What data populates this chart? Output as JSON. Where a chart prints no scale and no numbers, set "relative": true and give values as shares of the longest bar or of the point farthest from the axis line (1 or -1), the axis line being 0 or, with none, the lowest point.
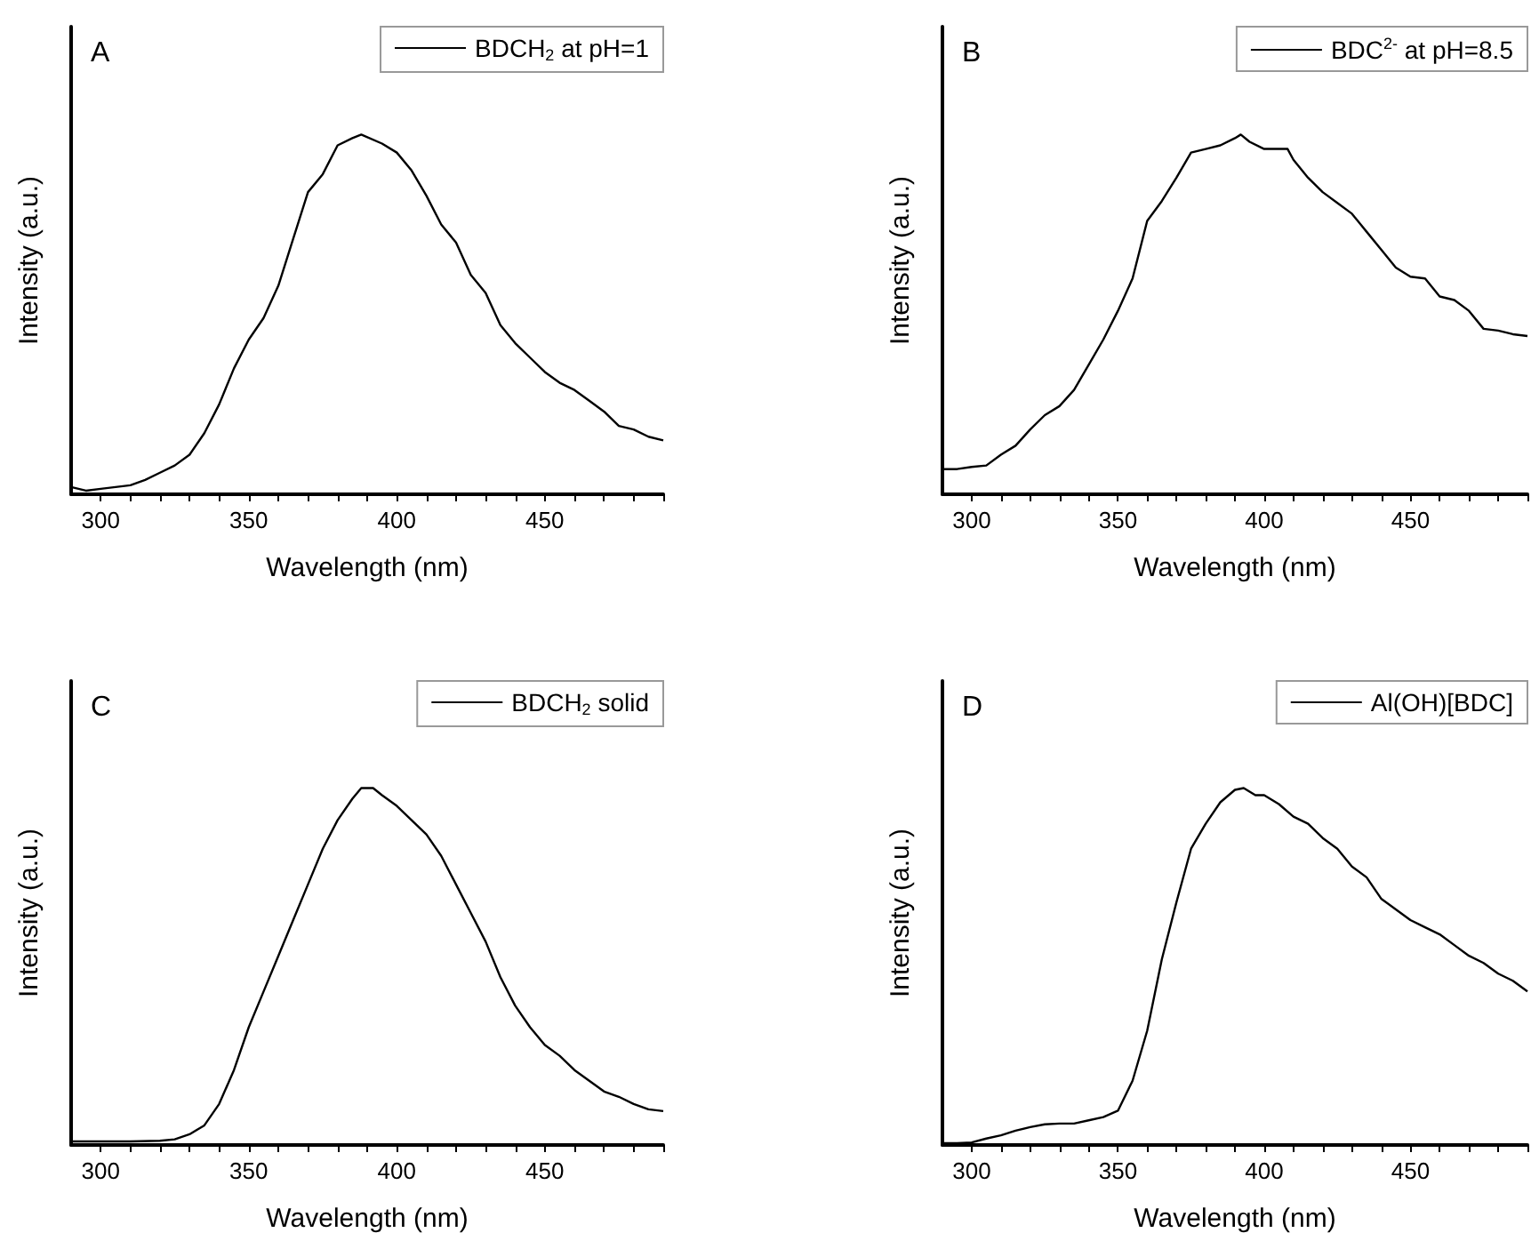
{
  "chart_data": [
    {
      "type": "line",
      "title": "A",
      "xlabel": "Wavelength (nm)",
      "ylabel": "Intensity (a.u.)",
      "relative": true,
      "legend": "top right",
      "xlim": [
        290,
        490
      ],
      "xticks": [
        300,
        {
          "value": 310,
          "label": null
        },
        {
          "value": 320,
          "label": null
        },
        {
          "value": 330,
          "label": null
        },
        {
          "value": 340,
          "label": null
        },
        350,
        {
          "value": 360,
          "label": null
        },
        {
          "value": 370,
          "label": null
        },
        {
          "value": 380,
          "label": null
        },
        {
          "value": 390,
          "label": null
        },
        400,
        {
          "value": 410,
          "label": null
        },
        {
          "value": 420,
          "label": null
        },
        {
          "value": 430,
          "label": null
        },
        {
          "value": 440,
          "label": null
        },
        450,
        {
          "value": 460,
          "label": null
        },
        {
          "value": 470,
          "label": null
        },
        {
          "value": 480,
          "label": null
        },
        {
          "value": 490,
          "label": null
        }
      ],
      "x": [
        290,
        295,
        300,
        310,
        315,
        320,
        325,
        330,
        335,
        340,
        345,
        350,
        355,
        360,
        365,
        370,
        375,
        380,
        385,
        388,
        395,
        400,
        405,
        410,
        415,
        420,
        425,
        430,
        435,
        440,
        445,
        450,
        455,
        460,
        465,
        470,
        475,
        480,
        485,
        490
      ],
      "series": [
        {
          "name": "BDCH$_{2}$ at pH=1",
          "color": "#000000",
          "values": [
            0.02,
            0.01,
            0.015,
            0.025,
            0.04,
            0.06,
            0.08,
            0.11,
            0.17,
            0.25,
            0.35,
            0.43,
            0.49,
            0.58,
            0.71,
            0.84,
            0.89,
            0.97,
            0.99,
            1,
            0.975,
            0.95,
            0.9,
            0.83,
            0.75,
            0.7,
            0.61,
            0.56,
            0.47,
            0.42,
            0.38,
            0.34,
            0.31,
            0.29,
            0.26,
            0.23,
            0.19,
            0.18,
            0.16,
            0.15
          ]
        }
      ]
    },
    {
      "type": "line",
      "title": "B",
      "xlabel": "Wavelength (nm)",
      "ylabel": "Intensity (a.u.)",
      "relative": true,
      "legend": "top right",
      "xlim": [
        290,
        490
      ],
      "xticks": [
        300,
        {
          "value": 310,
          "label": null
        },
        {
          "value": 320,
          "label": null
        },
        {
          "value": 330,
          "label": null
        },
        {
          "value": 340,
          "label": null
        },
        350,
        {
          "value": 360,
          "label": null
        },
        {
          "value": 370,
          "label": null
        },
        {
          "value": 380,
          "label": null
        },
        {
          "value": 390,
          "label": null
        },
        400,
        {
          "value": 410,
          "label": null
        },
        {
          "value": 420,
          "label": null
        },
        {
          "value": 430,
          "label": null
        },
        {
          "value": 440,
          "label": null
        },
        450,
        {
          "value": 460,
          "label": null
        },
        {
          "value": 470,
          "label": null
        },
        {
          "value": 480,
          "label": null
        },
        {
          "value": 490,
          "label": null
        }
      ],
      "x": [
        290,
        295,
        300,
        305,
        310,
        315,
        320,
        325,
        330,
        335,
        340,
        345,
        350,
        355,
        360,
        365,
        370,
        375,
        380,
        385,
        390,
        392,
        395,
        400,
        405,
        408,
        410,
        415,
        420,
        425,
        430,
        435,
        440,
        445,
        450,
        455,
        460,
        465,
        470,
        475,
        480,
        485,
        490
      ],
      "series": [
        {
          "name": "BDC$^{2-}$ at pH=8.5",
          "color": "#000000",
          "values": [
            0.07,
            0.07,
            0.076,
            0.08,
            0.11,
            0.135,
            0.18,
            0.22,
            0.245,
            0.29,
            0.36,
            0.43,
            0.51,
            0.6,
            0.76,
            0.815,
            0.88,
            0.95,
            0.96,
            0.97,
            0.99,
            1,
            0.98,
            0.96,
            0.96,
            0.96,
            0.93,
            0.88,
            0.84,
            0.81,
            0.78,
            0.73,
            0.68,
            0.63,
            0.605,
            0.6,
            0.55,
            0.54,
            0.51,
            0.46,
            0.455,
            0.445,
            0.44
          ]
        }
      ]
    },
    {
      "type": "line",
      "title": "C",
      "xlabel": "Wavelength (nm)",
      "ylabel": "Intensity (a.u.)",
      "relative": true,
      "legend": "top right",
      "xlim": [
        290,
        490
      ],
      "xticks": [
        300,
        {
          "value": 310,
          "label": null
        },
        {
          "value": 320,
          "label": null
        },
        {
          "value": 330,
          "label": null
        },
        {
          "value": 340,
          "label": null
        },
        350,
        {
          "value": 360,
          "label": null
        },
        {
          "value": 370,
          "label": null
        },
        {
          "value": 380,
          "label": null
        },
        {
          "value": 390,
          "label": null
        },
        400,
        {
          "value": 410,
          "label": null
        },
        {
          "value": 420,
          "label": null
        },
        {
          "value": 430,
          "label": null
        },
        {
          "value": 440,
          "label": null
        },
        450,
        {
          "value": 460,
          "label": null
        },
        {
          "value": 470,
          "label": null
        },
        {
          "value": 480,
          "label": null
        },
        {
          "value": 490,
          "label": null
        }
      ],
      "x": [
        290,
        300,
        310,
        320,
        325,
        330,
        335,
        340,
        345,
        350,
        355,
        360,
        365,
        370,
        375,
        380,
        385,
        388,
        392,
        395,
        400,
        405,
        410,
        415,
        420,
        425,
        430,
        435,
        440,
        445,
        450,
        455,
        460,
        465,
        470,
        475,
        480,
        485,
        490
      ],
      "series": [
        {
          "name": "BDCH$_{2}$ solid",
          "color": "#000000",
          "values": [
            0.01,
            0.01,
            0.01,
            0.012,
            0.016,
            0.03,
            0.055,
            0.115,
            0.21,
            0.33,
            0.43,
            0.53,
            0.63,
            0.73,
            0.83,
            0.91,
            0.97,
            1,
            1,
            0.98,
            0.95,
            0.91,
            0.87,
            0.81,
            0.73,
            0.65,
            0.57,
            0.47,
            0.39,
            0.33,
            0.28,
            0.25,
            0.21,
            0.18,
            0.15,
            0.135,
            0.115,
            0.1,
            0.095
          ]
        }
      ]
    },
    {
      "type": "line",
      "title": "D",
      "xlabel": "Wavelength (nm)",
      "ylabel": "Intensity (a.u.)",
      "relative": true,
      "legend": "top right",
      "xlim": [
        290,
        490
      ],
      "xticks": [
        300,
        {
          "value": 310,
          "label": null
        },
        {
          "value": 320,
          "label": null
        },
        {
          "value": 330,
          "label": null
        },
        {
          "value": 340,
          "label": null
        },
        350,
        {
          "value": 360,
          "label": null
        },
        {
          "value": 370,
          "label": null
        },
        {
          "value": 380,
          "label": null
        },
        {
          "value": 390,
          "label": null
        },
        400,
        {
          "value": 410,
          "label": null
        },
        {
          "value": 420,
          "label": null
        },
        {
          "value": 430,
          "label": null
        },
        {
          "value": 440,
          "label": null
        },
        450,
        {
          "value": 460,
          "label": null
        },
        {
          "value": 470,
          "label": null
        },
        {
          "value": 480,
          "label": null
        },
        {
          "value": 490,
          "label": null
        }
      ],
      "x": [
        290,
        295,
        300,
        305,
        310,
        315,
        320,
        325,
        330,
        335,
        340,
        345,
        350,
        355,
        360,
        365,
        370,
        375,
        380,
        385,
        390,
        393,
        397,
        400,
        405,
        410,
        415,
        420,
        425,
        430,
        435,
        440,
        445,
        450,
        455,
        460,
        465,
        470,
        475,
        480,
        485,
        490
      ],
      "series": [
        {
          "name": "Al(OH)[BDC]",
          "color": "#000000",
          "values": [
            0.005,
            0.005,
            0.007,
            0.018,
            0.027,
            0.04,
            0.05,
            0.058,
            0.06,
            0.06,
            0.069,
            0.078,
            0.096,
            0.18,
            0.32,
            0.52,
            0.68,
            0.83,
            0.9,
            0.96,
            0.995,
            1,
            0.98,
            0.98,
            0.955,
            0.92,
            0.9,
            0.86,
            0.83,
            0.78,
            0.75,
            0.69,
            0.66,
            0.63,
            0.61,
            0.59,
            0.56,
            0.53,
            0.51,
            0.48,
            0.46,
            0.43
          ]
        }
      ]
    }
  ]
}
